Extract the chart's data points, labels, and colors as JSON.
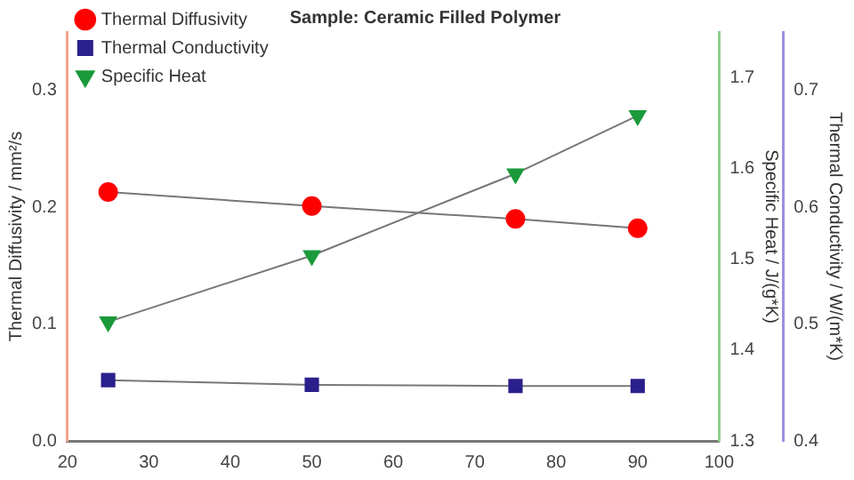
{
  "chart_data": {
    "type": "line",
    "title": "Sample: Ceramic Filled Polymer",
    "ylabel": "Thermal Diffusivity / mm²/s",
    "y2label": "Specific Heat / J/(g*K)",
    "y3label": "Thermal Conductivity / W/(m*K)",
    "x": [
      25,
      50,
      75,
      90
    ],
    "xlim": [
      20,
      100
    ],
    "xticks": [
      20,
      30,
      40,
      50,
      60,
      70,
      80,
      90,
      100
    ],
    "ylim": [
      0,
      0.35
    ],
    "yticks": [
      {
        "value": 0,
        "label": "0.0"
      },
      0.1,
      0.2,
      0.3
    ],
    "y2lim": [
      1.3,
      1.75
    ],
    "y2ticks": [
      1.3,
      1.4,
      1.5,
      1.6,
      1.7
    ],
    "y3lim": [
      0.4,
      0.75
    ],
    "y3ticks": [
      0.4,
      0.5,
      0.6,
      0.7
    ],
    "series": [
      {
        "name": "Thermal Diffusivity",
        "color": "#ff0000",
        "marker": "circle",
        "values": [
          0.213,
          0.201,
          0.19,
          0.182
        ]
      },
      {
        "name": "Thermal Conductivity",
        "color": "#2b1f8c",
        "marker": "square",
        "axis": "y3",
        "values": [
          0.452,
          0.448,
          0.447,
          0.447
        ]
      },
      {
        "name": "Specific Heat",
        "color": "#1a9a3a",
        "marker": "triangle",
        "axis": "y2",
        "values": [
          1.431,
          1.504,
          1.594,
          1.658
        ]
      }
    ],
    "grid": false,
    "legend": "top left"
  }
}
